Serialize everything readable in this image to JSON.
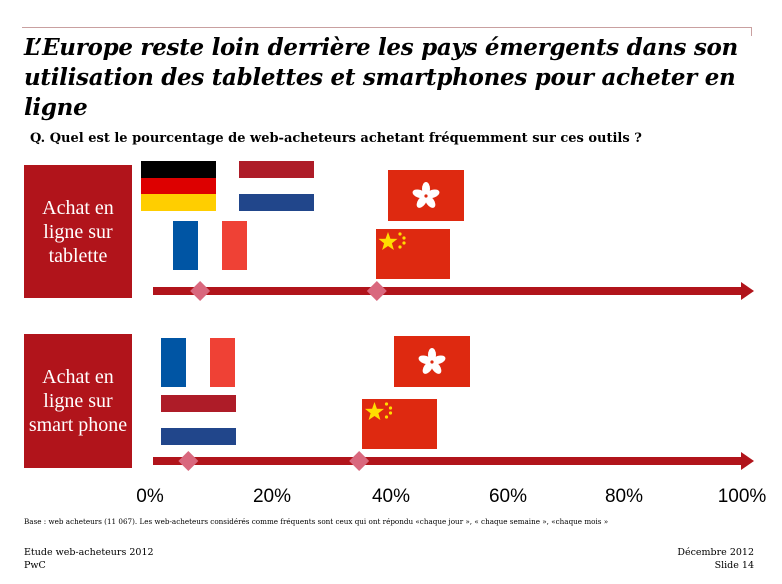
{
  "title": "L’Europe reste loin derrière les pays émergents dans son utilisation des tablettes et smartphones pour acheter en ligne",
  "question": "Q. Quel est le pourcentage de web-acheteurs achetant fréquemment sur ces outils ?",
  "chart_data": {
    "type": "scatter",
    "xlim": [
      0,
      100
    ],
    "tick_labels": [
      "0%",
      "20%",
      "40%",
      "60%",
      "80%",
      "100%"
    ],
    "rows": [
      {
        "label": "Achat en ligne sur tablette",
        "markers": [
          8,
          38
        ],
        "flags": [
          "germany",
          "netherlands",
          "france",
          "hong-kong",
          "china"
        ]
      },
      {
        "label": "Achat en ligne sur smart phone",
        "markers": [
          6,
          35
        ],
        "flags": [
          "france",
          "netherlands",
          "hong-kong",
          "china"
        ]
      }
    ],
    "colors": {
      "bar": "#b1141b",
      "marker": "#d9687e"
    }
  },
  "footnote": "Base : web acheteurs (11 067). Les web-acheteurs considérés comme fréquents sont ceux qui ont répondu «chaque jour », « chaque semaine », «chaque mois »",
  "footer": {
    "left_line1": "Etude web-acheteurs 2012",
    "left_line2": "PwC",
    "right_line1": "Décembre 2012",
    "right_line2": "Slide 14"
  }
}
